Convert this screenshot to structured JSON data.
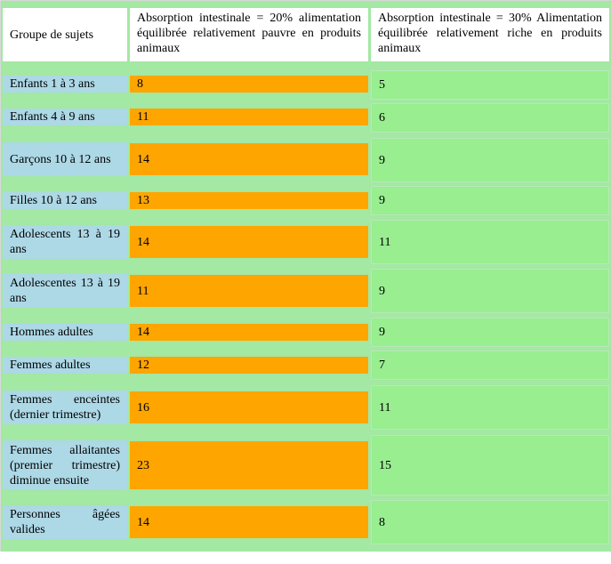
{
  "headers": {
    "group": "Groupe de sujets",
    "low": "Absorption intestinale = 20% alimentation équilibrée relativement pauvre en produits animaux",
    "high": "Absorption intestinale = 30% Alimentation équilibrée relativement riche en produits animaux"
  },
  "rows": [
    {
      "group": "Enfants 1 à 3 ans",
      "low": "8",
      "high": "5"
    },
    {
      "group": "Enfants 4 à 9 ans",
      "low": "11",
      "high": "6"
    },
    {
      "group": "Garçons 10 à 12 ans",
      "low": "14",
      "high": "9"
    },
    {
      "group": "Filles 10 à 12 ans",
      "low": "13",
      "high": "9"
    },
    {
      "group": "Adolescents 13 à 19 ans",
      "low": "14",
      "high": "11"
    },
    {
      "group": "Adolescentes 13 à 19 ans",
      "low": "11",
      "high": "9"
    },
    {
      "group": "Hommes adultes",
      "low": "14",
      "high": "9"
    },
    {
      "group": "Femmes adultes",
      "low": "12",
      "high": "7"
    },
    {
      "group": "Femmes enceintes (dernier trimestre)",
      "low": "16",
      "high": "11"
    },
    {
      "group": "Femmes allaitantes (premier trimestre) diminue ensuite",
      "low": "23",
      "high": "15"
    },
    {
      "group": "Personnes âgées valides",
      "low": "14",
      "high": "8"
    }
  ],
  "colors": {
    "table_bg": "#a3e8a3",
    "group_cell": "#add8e6",
    "low_cell": "#ffa500",
    "high_cell": "#99ee90",
    "header_cell": "#ffffff"
  }
}
